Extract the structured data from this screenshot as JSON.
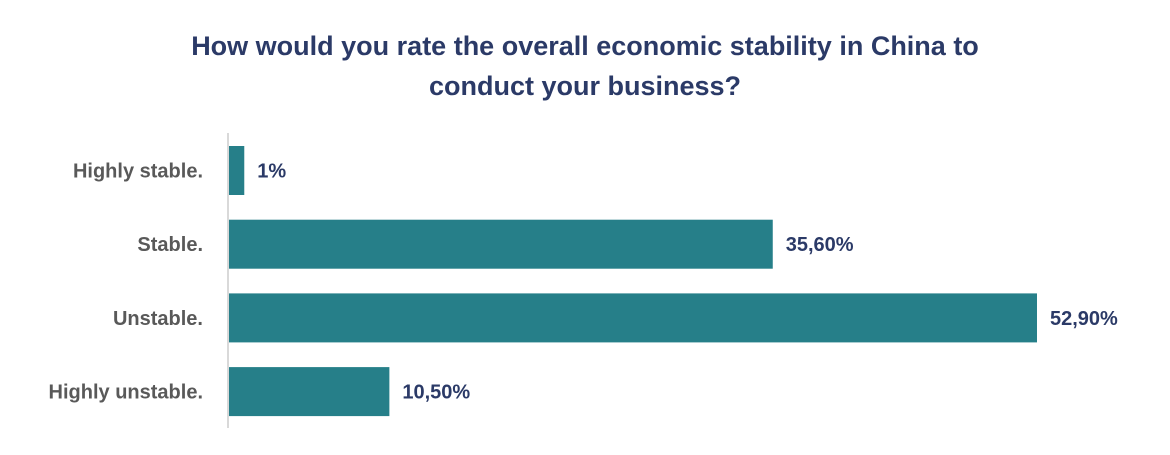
{
  "chart_data": {
    "type": "bar",
    "orientation": "horizontal",
    "title": "How would you rate the overall economic stability in China to conduct your business?",
    "title_lines": [
      "How would you rate the overall economic stability in China to",
      "conduct your business?"
    ],
    "categories": [
      "Highly stable.",
      "Stable.",
      "Unstable.",
      "Highly unstable."
    ],
    "values": [
      1,
      35.6,
      52.9,
      10.5
    ],
    "value_labels": [
      "1%",
      "35,60%",
      "52,90%",
      "10,50%"
    ],
    "xlim": [
      0,
      52.9
    ],
    "grid": false,
    "bar_color": "#267f89",
    "title_color": "#2b3a67",
    "label_color": "#595959"
  }
}
